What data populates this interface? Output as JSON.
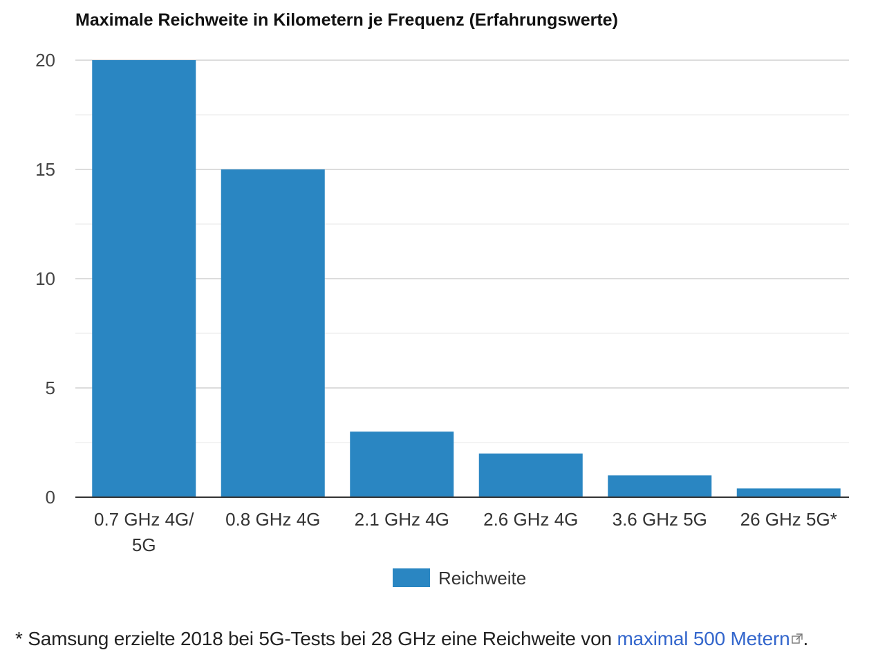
{
  "chart_data": {
    "type": "bar",
    "title": "Maximale Reichweite in Kilometern je Frequenz (Erfahrungswerte)",
    "categories": [
      [
        "0.7 GHz 4G/",
        "5G"
      ],
      [
        "0.8 GHz 4G"
      ],
      [
        "2.1 GHz 4G"
      ],
      [
        "2.6 GHz 4G"
      ],
      [
        "3.6 GHz 5G"
      ],
      [
        "26 GHz 5G*"
      ]
    ],
    "series": [
      {
        "name": "Reichweite",
        "values": [
          20,
          15,
          3,
          2,
          1,
          0.4
        ],
        "color": "#2a86c2"
      }
    ],
    "ylim": [
      0,
      20
    ],
    "yticks": [
      0,
      5,
      10,
      15,
      20
    ],
    "grid": true,
    "legend": "bottom"
  },
  "footnote": {
    "text": "* Samsung erzielte 2018 bei 5G-Tests bei 28 GHz eine Reichweite von ",
    "link_text": "maximal 500 Metern",
    "end": ".",
    "link_icon": "external-link-icon"
  },
  "colors": {
    "bar": "#2a86c2",
    "link": "#3366cc",
    "grid": "#d9d9d9",
    "axis": "#333333"
  }
}
